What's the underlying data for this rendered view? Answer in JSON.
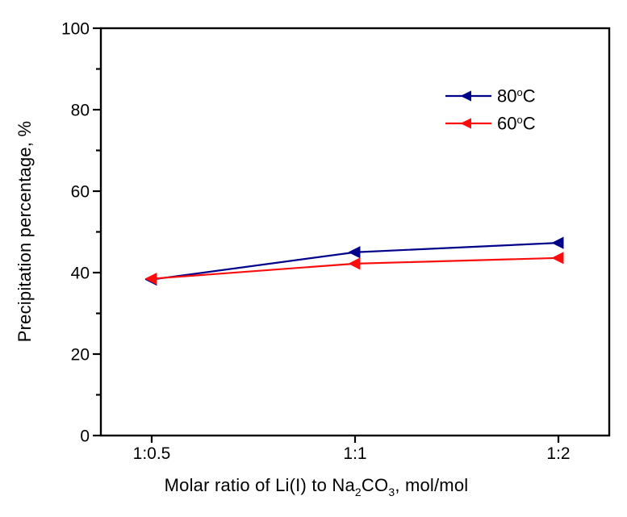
{
  "figure": {
    "background": "#ffffff",
    "axis_color": "#000000",
    "text_color": "#000000"
  },
  "chart_data": {
    "type": "line",
    "title": "",
    "xlabel": "Molar ratio of Li(I) to Na₂CO₃, mol/mol",
    "xlabel_parts": [
      {
        "text": "Molar ratio of Li(I) to Na"
      },
      {
        "text": "2",
        "style": "sub"
      },
      {
        "text": "CO"
      },
      {
        "text": "3",
        "style": "sub"
      },
      {
        "text": ", mol/mol"
      }
    ],
    "ylabel": "Precipitation percentage, %",
    "categories": [
      "1:0.5",
      "1:1",
      "1:2"
    ],
    "series": [
      {
        "name": "80°C",
        "label_base": "80",
        "label_sup": "o",
        "label_unit": "C",
        "color": "#00008b",
        "marker": "triangle-left",
        "values": [
          38.3,
          45.0,
          47.3
        ]
      },
      {
        "name": "60°C",
        "label_base": "60",
        "label_sup": "o",
        "label_unit": "C",
        "color": "#fb0d0d",
        "marker": "triangle-left",
        "values": [
          38.5,
          42.2,
          43.6
        ]
      }
    ],
    "ylim": [
      0,
      100
    ],
    "y_major_ticks": [
      0,
      20,
      40,
      60,
      80,
      100
    ],
    "y_minor_step": 10,
    "x_minor_ticks": false,
    "grid": false,
    "legend_position": "upper-right-inside",
    "legend_border": false
  }
}
